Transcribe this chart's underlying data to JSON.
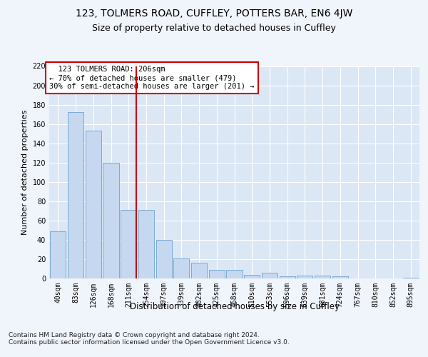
{
  "title1": "123, TOLMERS ROAD, CUFFLEY, POTTERS BAR, EN6 4JW",
  "title2": "Size of property relative to detached houses in Cuffley",
  "xlabel": "Distribution of detached houses by size in Cuffley",
  "ylabel": "Number of detached properties",
  "categories": [
    "40sqm",
    "83sqm",
    "126sqm",
    "168sqm",
    "211sqm",
    "254sqm",
    "297sqm",
    "339sqm",
    "382sqm",
    "425sqm",
    "468sqm",
    "510sqm",
    "553sqm",
    "596sqm",
    "639sqm",
    "681sqm",
    "724sqm",
    "767sqm",
    "810sqm",
    "852sqm",
    "895sqm"
  ],
  "values": [
    49,
    172,
    153,
    120,
    71,
    71,
    40,
    21,
    16,
    9,
    9,
    4,
    6,
    2,
    3,
    3,
    2,
    0,
    0,
    0,
    1
  ],
  "bar_color": "#c5d8f0",
  "bar_edge_color": "#6ea3cc",
  "vline_color": "#cc0000",
  "annotation_text": "  123 TOLMERS ROAD: 206sqm\n← 70% of detached houses are smaller (479)\n30% of semi-detached houses are larger (201) →",
  "annotation_box_color": "#ffffff",
  "annotation_box_edge": "#cc0000",
  "ylim": [
    0,
    220
  ],
  "yticks": [
    0,
    20,
    40,
    60,
    80,
    100,
    120,
    140,
    160,
    180,
    200,
    220
  ],
  "bg_color": "#f0f4fb",
  "plot_bg_color": "#dce7f5",
  "footer": "Contains HM Land Registry data © Crown copyright and database right 2024.\nContains public sector information licensed under the Open Government Licence v3.0.",
  "title1_fontsize": 10,
  "title2_fontsize": 9,
  "xlabel_fontsize": 8.5,
  "ylabel_fontsize": 8,
  "tick_fontsize": 7,
  "footer_fontsize": 6.5,
  "ann_fontsize": 7.5
}
